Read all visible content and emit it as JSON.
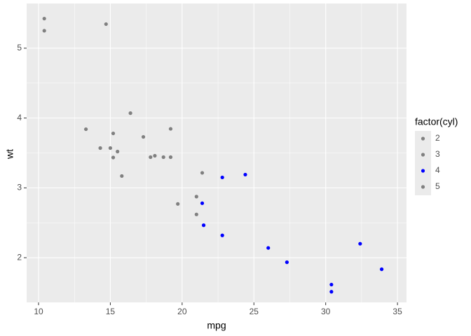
{
  "chart_data": {
    "type": "scatter",
    "x_label": "mpg",
    "y_label": "wt",
    "legend_title": "factor(cyl)",
    "xlim": [
      9.17,
      35.63
    ],
    "ylim": [
      1.36,
      5.64
    ],
    "xticks": [
      10,
      15,
      20,
      25,
      30,
      35
    ],
    "yticks": [
      2,
      3,
      4,
      5
    ],
    "grid": true,
    "series": [
      {
        "name": "2",
        "color": "#808080",
        "x": [],
        "y": []
      },
      {
        "name": "3",
        "color": "#808080",
        "x": [
          21.0,
          21.0,
          21.4,
          18.1,
          19.2,
          17.8,
          19.7
        ],
        "y": [
          2.62,
          2.875,
          3.215,
          3.46,
          3.44,
          3.44,
          2.77
        ]
      },
      {
        "name": "4",
        "color": "#0000ff",
        "x": [
          22.8,
          24.4,
          22.8,
          32.4,
          30.4,
          33.9,
          21.5,
          27.3,
          26.0,
          30.4,
          21.4
        ],
        "y": [
          2.32,
          3.19,
          3.15,
          2.2,
          1.615,
          1.835,
          2.465,
          1.935,
          2.14,
          1.513,
          2.78
        ]
      },
      {
        "name": "5",
        "color": "#808080",
        "x": [
          18.7,
          14.3,
          16.4,
          17.3,
          15.2,
          10.4,
          10.4,
          14.7,
          15.5,
          15.2,
          13.3,
          19.2,
          15.8,
          15.0
        ],
        "y": [
          3.44,
          3.57,
          4.07,
          3.73,
          3.78,
          5.25,
          5.424,
          5.345,
          3.52,
          3.435,
          3.84,
          3.845,
          3.17,
          3.57
        ]
      }
    ]
  }
}
